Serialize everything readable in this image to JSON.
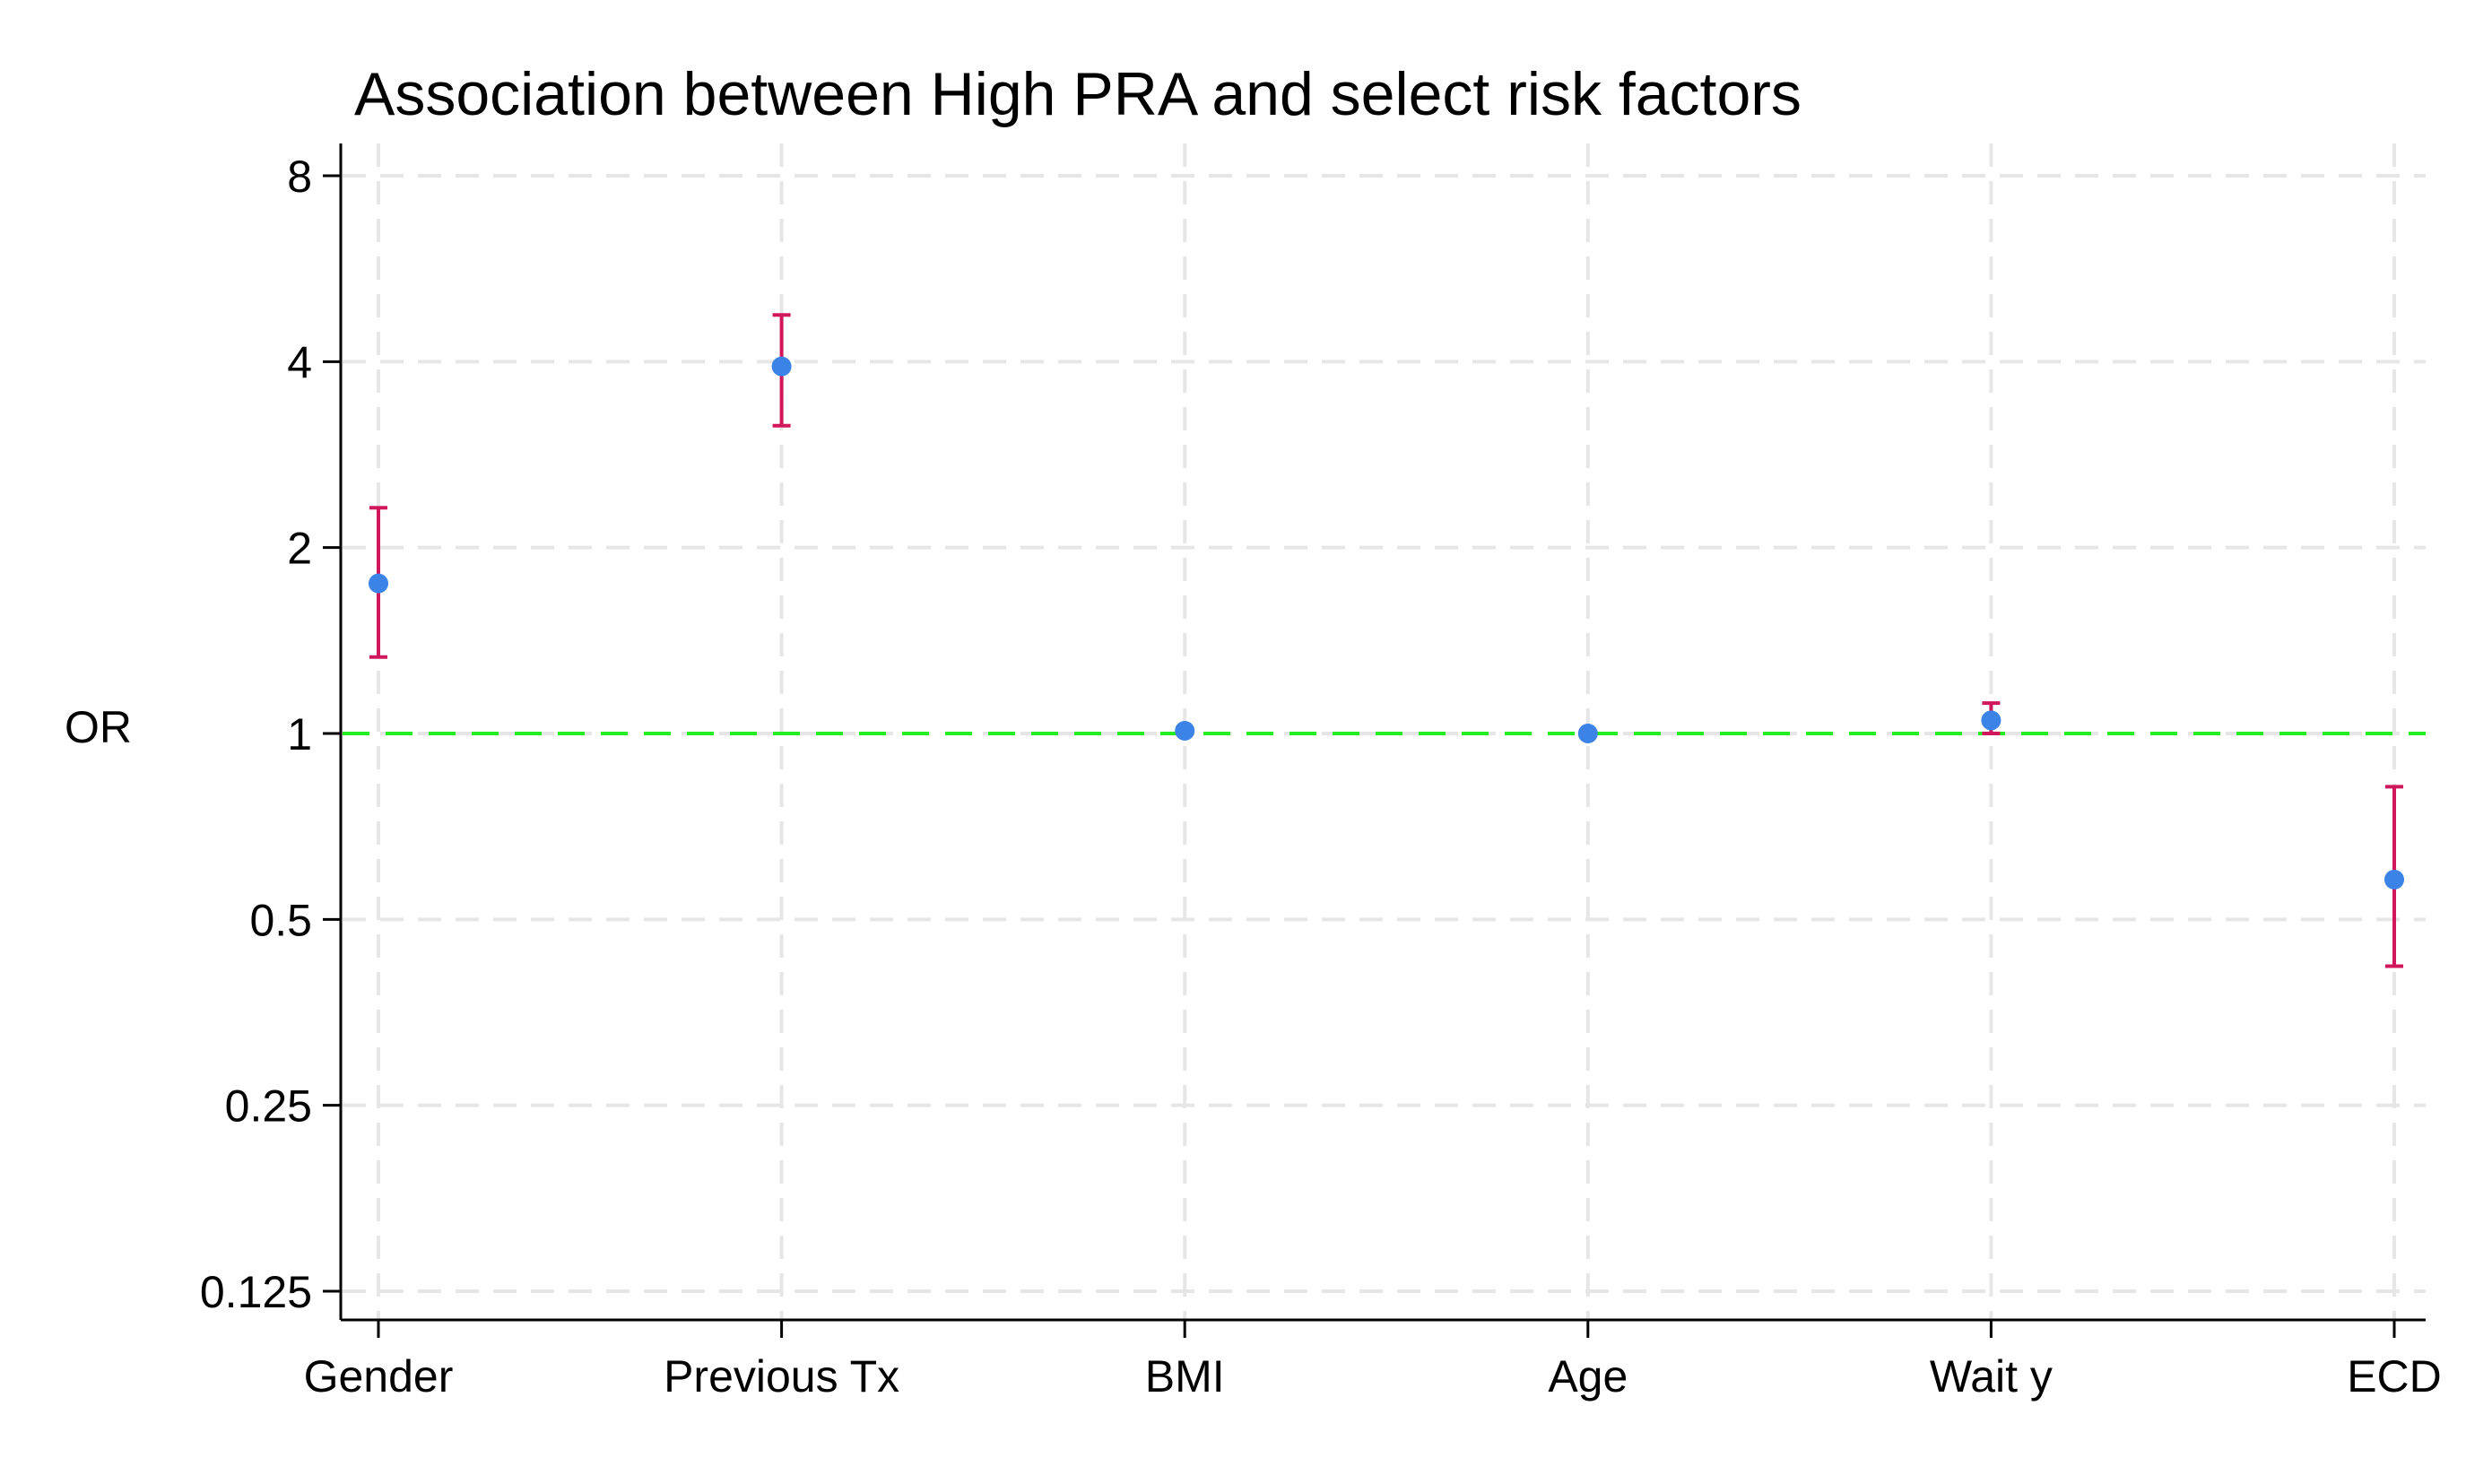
{
  "chart_data": {
    "type": "scatter",
    "title": "Association between High PRA and select risk factors",
    "xlabel": "",
    "ylabel": "OR",
    "y_scale": "log2",
    "ylim": [
      0.125,
      8
    ],
    "yticks": [
      {
        "value": 0.125,
        "label": "0.125"
      },
      {
        "value": 0.25,
        "label": "0.25"
      },
      {
        "value": 0.5,
        "label": "0.5"
      },
      {
        "value": 1,
        "label": "1"
      },
      {
        "value": 2,
        "label": "2"
      },
      {
        "value": 4,
        "label": "4"
      },
      {
        "value": 8,
        "label": "8"
      }
    ],
    "categories": [
      "Gender",
      "Previous Tx",
      "BMI",
      "Age",
      "Wait y",
      "ECD"
    ],
    "values": [
      1.75,
      3.93,
      1.01,
      1.0,
      1.05,
      0.58
    ],
    "ci_lower": [
      1.33,
      3.15,
      1.0,
      1.0,
      1.0,
      0.42
    ],
    "ci_upper": [
      2.32,
      4.76,
      1.02,
      1.0,
      1.12,
      0.82
    ],
    "reference_line": 1,
    "grid": true,
    "colors": {
      "point": "#3b83e6",
      "ci": "#d1175b",
      "reference": "#22ee22",
      "grid": "#e6e6e6",
      "axis": "#000000"
    }
  }
}
